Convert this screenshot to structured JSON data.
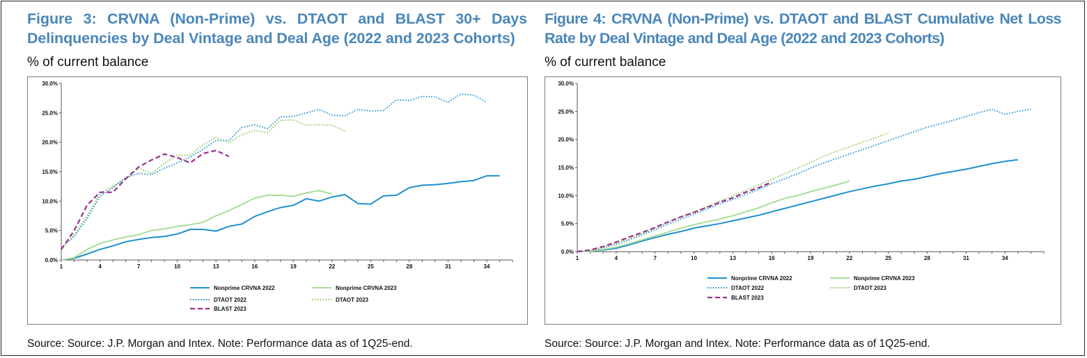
{
  "figures": [
    {
      "title": "Figure 3: CRVNA (Non-Prime) vs. DTAOT and BLAST 30+ Days Delinquencies by Deal Vintage and Deal Age (2022 and 2023 Cohorts)",
      "unit_label": "% of current balance",
      "source": "Source: Source: J.P. Morgan and Intex. Note: Performance data as of 1Q25-end."
    },
    {
      "title": "Figure 4: CRVNA (Non-Prime) vs. DTAOT and BLAST Cumulative Net Loss Rate by Deal Vintage and Deal Age (2022 and 2023 Cohorts)",
      "unit_label": "% of current balance",
      "source": "Source: Source: J.P. Morgan and Intex. Note: Performance data as of 1Q25-end."
    }
  ],
  "series_styles": {
    "Nonprime CRVNA 2022": {
      "color": "#1f8fcf",
      "dash": "solid"
    },
    "Nonprime CRVNA 2023": {
      "color": "#a8dc98",
      "dash": "solid"
    },
    "DTAOT 2022": {
      "color": "#1f8fcf",
      "dash": "dotted"
    },
    "DTAOT 2023": {
      "color": "#8bc65a",
      "dash": "dotted"
    },
    "BLAST 2023": {
      "color": "#9a2e8c",
      "dash": "dashed"
    }
  },
  "chart_data": [
    {
      "type": "line",
      "x_ticks": [
        1,
        4,
        7,
        10,
        13,
        16,
        19,
        22,
        25,
        28,
        31,
        34
      ],
      "xlim": [
        1,
        36
      ],
      "ylim": [
        0,
        30
      ],
      "y_ticks": [
        "0.0%",
        "5.0%",
        "10.0%",
        "15.0%",
        "20.0%",
        "25.0%",
        "30.0%"
      ],
      "y_tick_values": [
        0,
        5,
        10,
        15,
        20,
        25,
        30
      ],
      "legend_position": "bottom",
      "series": [
        {
          "name": "Nonprime CRVNA 2022",
          "x": [
            1,
            2,
            3,
            4,
            5,
            6,
            7,
            8,
            9,
            10,
            11,
            12,
            13,
            14,
            15,
            16,
            17,
            18,
            19,
            20,
            21,
            22,
            23,
            24,
            25,
            26,
            27,
            28,
            29,
            30,
            31,
            32,
            33,
            34,
            35
          ],
          "values": [
            0.0,
            0.3,
            1.0,
            1.8,
            2.4,
            3.1,
            3.5,
            3.8,
            4.0,
            4.4,
            5.2,
            5.2,
            4.9,
            5.7,
            6.1,
            7.4,
            8.2,
            8.9,
            9.3,
            10.4,
            10.0,
            10.7,
            11.1,
            9.6,
            9.5,
            10.9,
            11.0,
            12.3,
            12.7,
            12.8,
            13.0,
            13.3,
            13.5,
            14.3,
            14.3
          ]
        },
        {
          "name": "Nonprime CRVNA 2023",
          "x": [
            1,
            2,
            3,
            4,
            5,
            6,
            7,
            8,
            9,
            10,
            11,
            12,
            13,
            14,
            15,
            16,
            17,
            18,
            19,
            20,
            21,
            22
          ],
          "values": [
            0.0,
            0.4,
            1.8,
            2.8,
            3.4,
            3.9,
            4.3,
            5.0,
            5.3,
            5.7,
            6.0,
            6.4,
            7.5,
            8.4,
            9.4,
            10.5,
            11.0,
            11.0,
            10.8,
            11.4,
            11.8,
            11.2
          ]
        },
        {
          "name": "DTAOT 2022",
          "x": [
            1,
            2,
            3,
            4,
            5,
            6,
            7,
            8,
            9,
            10,
            11,
            12,
            13,
            14,
            15,
            16,
            17,
            18,
            19,
            20,
            21,
            22,
            23,
            24,
            25,
            26,
            27,
            28,
            29,
            30,
            31,
            32,
            33,
            34
          ],
          "values": [
            2.0,
            4.0,
            7.0,
            10.8,
            12.3,
            14.0,
            14.7,
            14.5,
            15.6,
            16.5,
            17.5,
            18.8,
            20.3,
            20.3,
            22.5,
            23.0,
            22.3,
            24.3,
            24.4,
            25.0,
            25.6,
            24.6,
            24.5,
            25.6,
            25.3,
            25.4,
            27.2,
            27.1,
            27.8,
            27.7,
            26.8,
            28.2,
            28.0,
            26.8
          ]
        },
        {
          "name": "DTAOT 2023",
          "x": [
            1,
            2,
            3,
            4,
            5,
            6,
            7,
            8,
            9,
            10,
            11,
            12,
            13,
            14,
            15,
            16,
            17,
            18,
            19,
            20,
            21,
            22,
            23
          ],
          "values": [
            1.9,
            4.3,
            7.5,
            11.3,
            12.5,
            13.8,
            15.6,
            14.7,
            16.4,
            17.8,
            17.8,
            19.6,
            20.8,
            19.9,
            21.3,
            22.0,
            21.6,
            23.7,
            23.8,
            22.9,
            23.0,
            22.9,
            21.9
          ]
        },
        {
          "name": "BLAST 2023",
          "x": [
            1,
            2,
            3,
            4,
            5,
            6,
            7,
            8,
            9,
            10,
            11,
            12,
            13,
            14
          ],
          "values": [
            1.8,
            5.0,
            9.3,
            11.5,
            11.5,
            13.8,
            15.8,
            17.0,
            18.0,
            17.4,
            16.5,
            18.1,
            18.6,
            17.6
          ]
        }
      ]
    },
    {
      "type": "line",
      "x_ticks": [
        1,
        4,
        7,
        10,
        13,
        16,
        19,
        22,
        25,
        28,
        31,
        34
      ],
      "xlim": [
        1,
        37
      ],
      "ylim": [
        0,
        30
      ],
      "y_ticks": [
        "0.0%",
        "5.0%",
        "10.0%",
        "15.0%",
        "20.0%",
        "25.0%",
        "30.0%"
      ],
      "y_tick_values": [
        0,
        5,
        10,
        15,
        20,
        25,
        30
      ],
      "legend_position": "bottom",
      "series": [
        {
          "name": "Nonprime CRVNA 2022",
          "x": [
            1,
            2,
            3,
            4,
            5,
            6,
            7,
            8,
            9,
            10,
            11,
            12,
            13,
            14,
            15,
            16,
            17,
            18,
            19,
            20,
            21,
            22,
            23,
            24,
            25,
            26,
            27,
            28,
            29,
            30,
            31,
            32,
            33,
            34,
            35
          ],
          "values": [
            0.0,
            0.1,
            0.3,
            0.6,
            1.2,
            1.9,
            2.5,
            3.1,
            3.6,
            4.2,
            4.6,
            5.0,
            5.5,
            6.0,
            6.5,
            7.1,
            7.7,
            8.3,
            8.9,
            9.5,
            10.1,
            10.7,
            11.2,
            11.7,
            12.1,
            12.6,
            12.9,
            13.4,
            13.9,
            14.3,
            14.7,
            15.2,
            15.7,
            16.1,
            16.4
          ]
        },
        {
          "name": "Nonprime CRVNA 2023",
          "x": [
            1,
            2,
            3,
            4,
            5,
            6,
            7,
            8,
            9,
            10,
            11,
            12,
            13,
            14,
            15,
            16,
            17,
            18,
            19,
            20,
            21,
            22
          ],
          "values": [
            0.0,
            0.1,
            0.4,
            0.8,
            1.4,
            2.1,
            2.8,
            3.5,
            4.2,
            4.8,
            5.3,
            5.8,
            6.4,
            7.1,
            7.8,
            8.7,
            9.5,
            10.0,
            10.7,
            11.3,
            11.9,
            12.6
          ]
        },
        {
          "name": "DTAOT 2022",
          "x": [
            1,
            2,
            3,
            4,
            5,
            6,
            7,
            8,
            9,
            10,
            11,
            12,
            13,
            14,
            15,
            16,
            17,
            18,
            19,
            20,
            21,
            22,
            23,
            24,
            25,
            26,
            27,
            28,
            29,
            30,
            31,
            32,
            33,
            34,
            35,
            36
          ],
          "values": [
            0.0,
            0.2,
            0.7,
            1.3,
            2.1,
            3.0,
            3.9,
            4.9,
            5.8,
            6.7,
            7.6,
            8.5,
            9.3,
            10.2,
            11.1,
            12.1,
            13.0,
            13.9,
            14.9,
            15.8,
            16.6,
            17.4,
            18.2,
            19.0,
            19.8,
            20.6,
            21.4,
            22.2,
            22.8,
            23.4,
            24.1,
            24.8,
            25.4,
            24.5,
            25.0,
            25.4
          ]
        },
        {
          "name": "DTAOT 2023",
          "x": [
            1,
            2,
            3,
            4,
            5,
            6,
            7,
            8,
            9,
            10,
            11,
            12,
            13,
            14,
            15,
            16,
            17,
            18,
            19,
            20,
            21,
            22,
            23,
            24,
            25
          ],
          "values": [
            0.0,
            0.2,
            0.8,
            1.5,
            2.3,
            3.2,
            4.2,
            5.2,
            6.2,
            7.1,
            8.0,
            9.0,
            10.0,
            10.9,
            11.9,
            12.9,
            13.9,
            14.9,
            15.9,
            17.0,
            17.9,
            18.7,
            19.5,
            20.3,
            21.2
          ]
        },
        {
          "name": "BLAST 2023",
          "x": [
            1,
            2,
            3,
            4,
            5,
            6,
            7,
            8,
            9,
            10,
            11,
            12,
            13,
            14,
            15,
            16
          ],
          "values": [
            0.0,
            0.3,
            0.9,
            1.7,
            2.6,
            3.4,
            4.3,
            5.3,
            6.2,
            7.0,
            7.9,
            8.8,
            9.6,
            10.6,
            11.4,
            12.4
          ]
        }
      ]
    }
  ]
}
